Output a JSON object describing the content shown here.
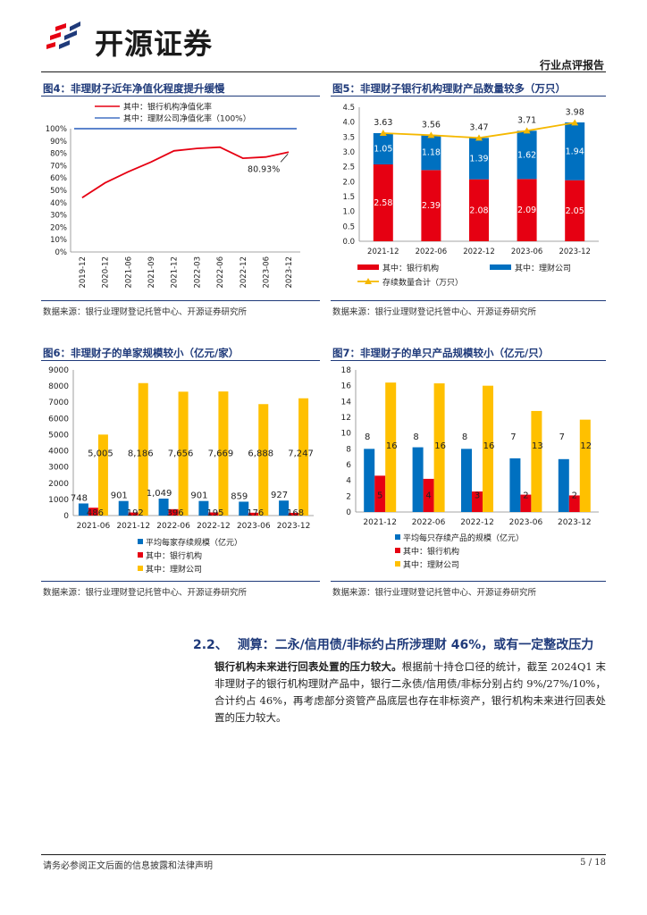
{
  "header": {
    "company": "开源证券",
    "report_type": "行业点评报告",
    "brand_colors": [
      "#e60012",
      "#1f3a7a"
    ]
  },
  "fig4": {
    "title": "图4：非理财子近年净值化程度提升缓慢",
    "legend": [
      "其中：银行机构净值化率",
      "其中：理财公司净值化率（100%）"
    ],
    "annotation": "80.93%",
    "source": "数据来源：银行业理财登记托管中心、开源证券研究所",
    "chart_data": {
      "type": "line",
      "x": [
        "2019-12",
        "2020-12",
        "2021-06",
        "2021-09",
        "2021-12",
        "2022-03",
        "2022-06",
        "2022-12",
        "2023-06",
        "2023-12"
      ],
      "series": [
        {
          "name": "其中：银行机构净值化率",
          "values": [
            44,
            56,
            65,
            73,
            82,
            84,
            85,
            76,
            77,
            80.93
          ],
          "color": "#e60012"
        },
        {
          "name": "其中：理财公司净值化率（100%）",
          "values": [
            100,
            100,
            100,
            100,
            100,
            100,
            100,
            100,
            100,
            100
          ],
          "color": "#4472c4"
        }
      ],
      "yticks": [
        "0%",
        "10%",
        "20%",
        "30%",
        "40%",
        "50%",
        "60%",
        "70%",
        "80%",
        "90%",
        "100%"
      ],
      "ylim": [
        0,
        100
      ]
    }
  },
  "fig5": {
    "title": "图5：非理财子银行机构理财产品数量较多（万只）",
    "source": "数据来源：银行业理财登记托管中心、开源证券研究所",
    "chart_data": {
      "type": "bar",
      "categories": [
        "2021-12",
        "2022-06",
        "2022-12",
        "2023-06",
        "2023-12"
      ],
      "series": [
        {
          "name": "其中：银行机构",
          "values": [
            2.58,
            2.39,
            2.08,
            2.09,
            2.05
          ],
          "color": "#e60012"
        },
        {
          "name": "其中：理财公司",
          "values": [
            1.05,
            1.18,
            1.39,
            1.62,
            1.94
          ],
          "color": "#0070c0"
        },
        {
          "name": "存续数量合计（万只）",
          "values": [
            3.63,
            3.56,
            3.47,
            3.71,
            3.98
          ],
          "color": "#f5b800"
        }
      ],
      "yticks": [
        "0.0",
        "0.5",
        "1.0",
        "1.5",
        "2.0",
        "2.5",
        "3.0",
        "3.5",
        "4.0",
        "4.5"
      ],
      "ylim": [
        0,
        4.5
      ]
    }
  },
  "fig6": {
    "title": "图6：非理财子的单家规模较小（亿元/家）",
    "source": "数据来源：银行业理财登记托管中心、开源证券研究所",
    "chart_data": {
      "type": "bar",
      "categories": [
        "2021-06",
        "2021-12",
        "2022-06",
        "2022-12",
        "2023-06",
        "2023-12"
      ],
      "series": [
        {
          "name": "平均每家存续规模（亿元）",
          "values": [
            748,
            901,
            1049,
            901,
            859,
            927
          ],
          "labels": [
            "748",
            "901",
            "1,049",
            "901",
            "859",
            "927"
          ],
          "color": "#0070c0"
        },
        {
          "name": "其中：银行机构",
          "values": [
            486,
            192,
            396,
            195,
            176,
            168
          ],
          "labels": [
            "486",
            "192",
            "396",
            "195",
            "176",
            "168"
          ],
          "color": "#e60012"
        },
        {
          "name": "其中：理财公司",
          "values": [
            5005,
            8186,
            7656,
            7669,
            6888,
            7247
          ],
          "labels": [
            "5,005",
            "8,186",
            "7,656",
            "7,669",
            "6,888",
            "7,247"
          ],
          "color": "#ffc000"
        }
      ],
      "yticks": [
        "0",
        "1000",
        "2000",
        "3000",
        "4000",
        "5000",
        "6000",
        "7000",
        "8000",
        "9000"
      ],
      "ylim": [
        0,
        9000
      ]
    }
  },
  "fig7": {
    "title": "图7：非理财子的单只产品规模较小（亿元/只）",
    "source": "数据来源：银行业理财登记托管中心、开源证券研究所",
    "chart_data": {
      "type": "bar",
      "categories": [
        "2021-12",
        "2022-06",
        "2022-12",
        "2023-06",
        "2023-12"
      ],
      "series": [
        {
          "name": "平均每只存续产品的规模（亿元）",
          "values": [
            8,
            8.2,
            8,
            6.8,
            6.7
          ],
          "labels": [
            "8",
            "8",
            "8",
            "7",
            "7"
          ],
          "color": "#0070c0"
        },
        {
          "name": "其中：银行机构",
          "values": [
            4.6,
            4.2,
            2.6,
            2.2,
            2.1
          ],
          "labels": [
            "5",
            "4",
            "3",
            "2",
            "2"
          ],
          "color": "#e60012"
        },
        {
          "name": "其中：理财公司",
          "values": [
            16.4,
            16.3,
            16,
            12.8,
            11.7
          ],
          "labels": [
            "16",
            "16",
            "16",
            "13",
            "12"
          ],
          "color": "#ffc000"
        }
      ],
      "yticks": [
        "0",
        "2",
        "4",
        "6",
        "8",
        "10",
        "12",
        "14",
        "16",
        "18"
      ],
      "ylim": [
        0,
        18
      ]
    }
  },
  "section": {
    "number": "2.2、",
    "title": "测算：二永/信用债/非标约占所涉理财 46%，或有一定整改压力"
  },
  "paragraph": {
    "lead": "银行机构未来进行回表处置的压力较大。",
    "text": "根据前十持仓口径的统计，截至 2024Q1 末非理财子的银行机构理财产品中，银行二永债/信用债/非标分别占约 9%/27%/10%，合计约占 46%，再考虑部分资管产品底层也存在非标资产，银行机构未来进行回表处置的压力较大。"
  },
  "footer": {
    "disclaimer": "请务必参阅正文后面的信息披露和法律声明",
    "page": "5 / 18"
  }
}
